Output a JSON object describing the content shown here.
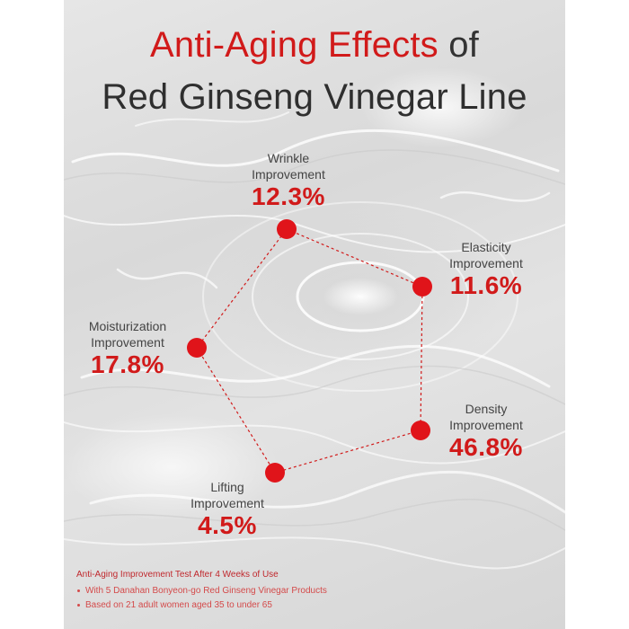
{
  "title": {
    "accent": "Anti-Aging Effects",
    "connector": "of",
    "line2": "Red Ginseng Vinegar Line"
  },
  "metrics": [
    {
      "name_line1": "Wrinkle",
      "name_line2": "Improvement",
      "value": "12.3%"
    },
    {
      "name_line1": "Elasticity",
      "name_line2": "Improvement",
      "value": "11.6%"
    },
    {
      "name_line1": "Density",
      "name_line2": "Improvement",
      "value": "46.8%"
    },
    {
      "name_line1": "Lifting",
      "name_line2": "Improvement",
      "value": "4.5%"
    },
    {
      "name_line1": "Moisturization",
      "name_line2": "Improvement",
      "value": "17.8%"
    }
  ],
  "footnote": {
    "heading": "Anti-Aging Improvement Test After 4 Weeks of Use",
    "items": [
      "With 5 Danahan Bonyeon-go Red Ginseng Vinegar Products",
      "Based on 21 adult women aged 35 to under 65"
    ]
  },
  "colors": {
    "accent": "#d11a1a",
    "dot": "#e0141a",
    "text": "#333333"
  }
}
